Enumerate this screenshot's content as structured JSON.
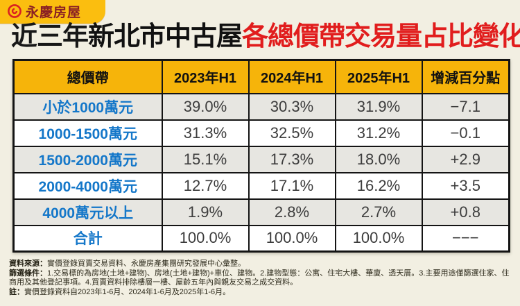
{
  "logo": {
    "brand": "永慶房屋",
    "icon": "yungching-spiral-icon",
    "badge_color": "#FBBE0F",
    "brand_color": "#8A1F24"
  },
  "title": {
    "part1": "近三年",
    "part2": "新北市中古屋",
    "part3": "各總價帶交易量占比變化"
  },
  "chart_data": {
    "type": "table",
    "title": "近三年新北市中古屋各總價帶交易量占比變化",
    "columns": [
      "總價帶",
      "2023年H1",
      "2024年H1",
      "2025年H1",
      "增減百分點"
    ],
    "rows": [
      [
        "小於1000萬元",
        "39.0%",
        "30.3%",
        "31.9%",
        "−7.1"
      ],
      [
        "1000-1500萬元",
        "31.3%",
        "32.5%",
        "31.2%",
        "−0.1"
      ],
      [
        "1500-2000萬元",
        "15.1%",
        "17.3%",
        "18.0%",
        "+2.9"
      ],
      [
        "2000-4000萬元",
        "12.7%",
        "17.1%",
        "16.2%",
        "+3.5"
      ],
      [
        "4000萬元以上",
        "1.9%",
        "2.8%",
        "2.7%",
        "+0.8"
      ],
      [
        "合計",
        "100.0%",
        "100.0%",
        "100.0%",
        "−−−"
      ]
    ],
    "series": [
      {
        "name": "2023年H1",
        "values": [
          39.0,
          31.3,
          15.1,
          12.7,
          1.9,
          100.0
        ]
      },
      {
        "name": "2024年H1",
        "values": [
          30.3,
          32.5,
          17.3,
          17.1,
          2.8,
          100.0
        ]
      },
      {
        "name": "2025年H1",
        "values": [
          31.9,
          31.2,
          18.0,
          16.2,
          2.7,
          100.0
        ]
      },
      {
        "name": "增減百分點",
        "values": [
          -7.1,
          -0.1,
          2.9,
          3.5,
          0.8,
          null
        ]
      }
    ],
    "categories": [
      "小於1000萬元",
      "1000-1500萬元",
      "1500-2000萬元",
      "2000-4000萬元",
      "4000萬元以上",
      "合計"
    ]
  },
  "footnotes": {
    "source_label": "資料來源：",
    "source_text": "實價登錄買賣交易資料、永慶房產集團研究發展中心彙整。",
    "filter_label": "篩選條件：",
    "filter_text": "1.交易標的為房地(土地+建物)、房地(土地+建物)+車位、建物。2.建物型態：公寓、住宅大樓、華廈、透天厝。3.主要用途僅篩選住家、住商用及其他登記事項。4.買賣資料排除樓層一樓、屋齡五年內與親友交易之成交資料。",
    "note_label": "註：",
    "note_text": "實價登錄資料自2023年1-6月、2024年1-6月及2025年1-6月。"
  },
  "colors": {
    "background": "#F2EFE2",
    "header_yellow": "#F6B40A",
    "badge_yellow": "#FBBE0F",
    "title_red": "#E11D1D",
    "band_blue": "#1477C9",
    "row_gray": "#E7E6E1",
    "border_black": "#141414",
    "value_text": "#3C3C3C"
  }
}
